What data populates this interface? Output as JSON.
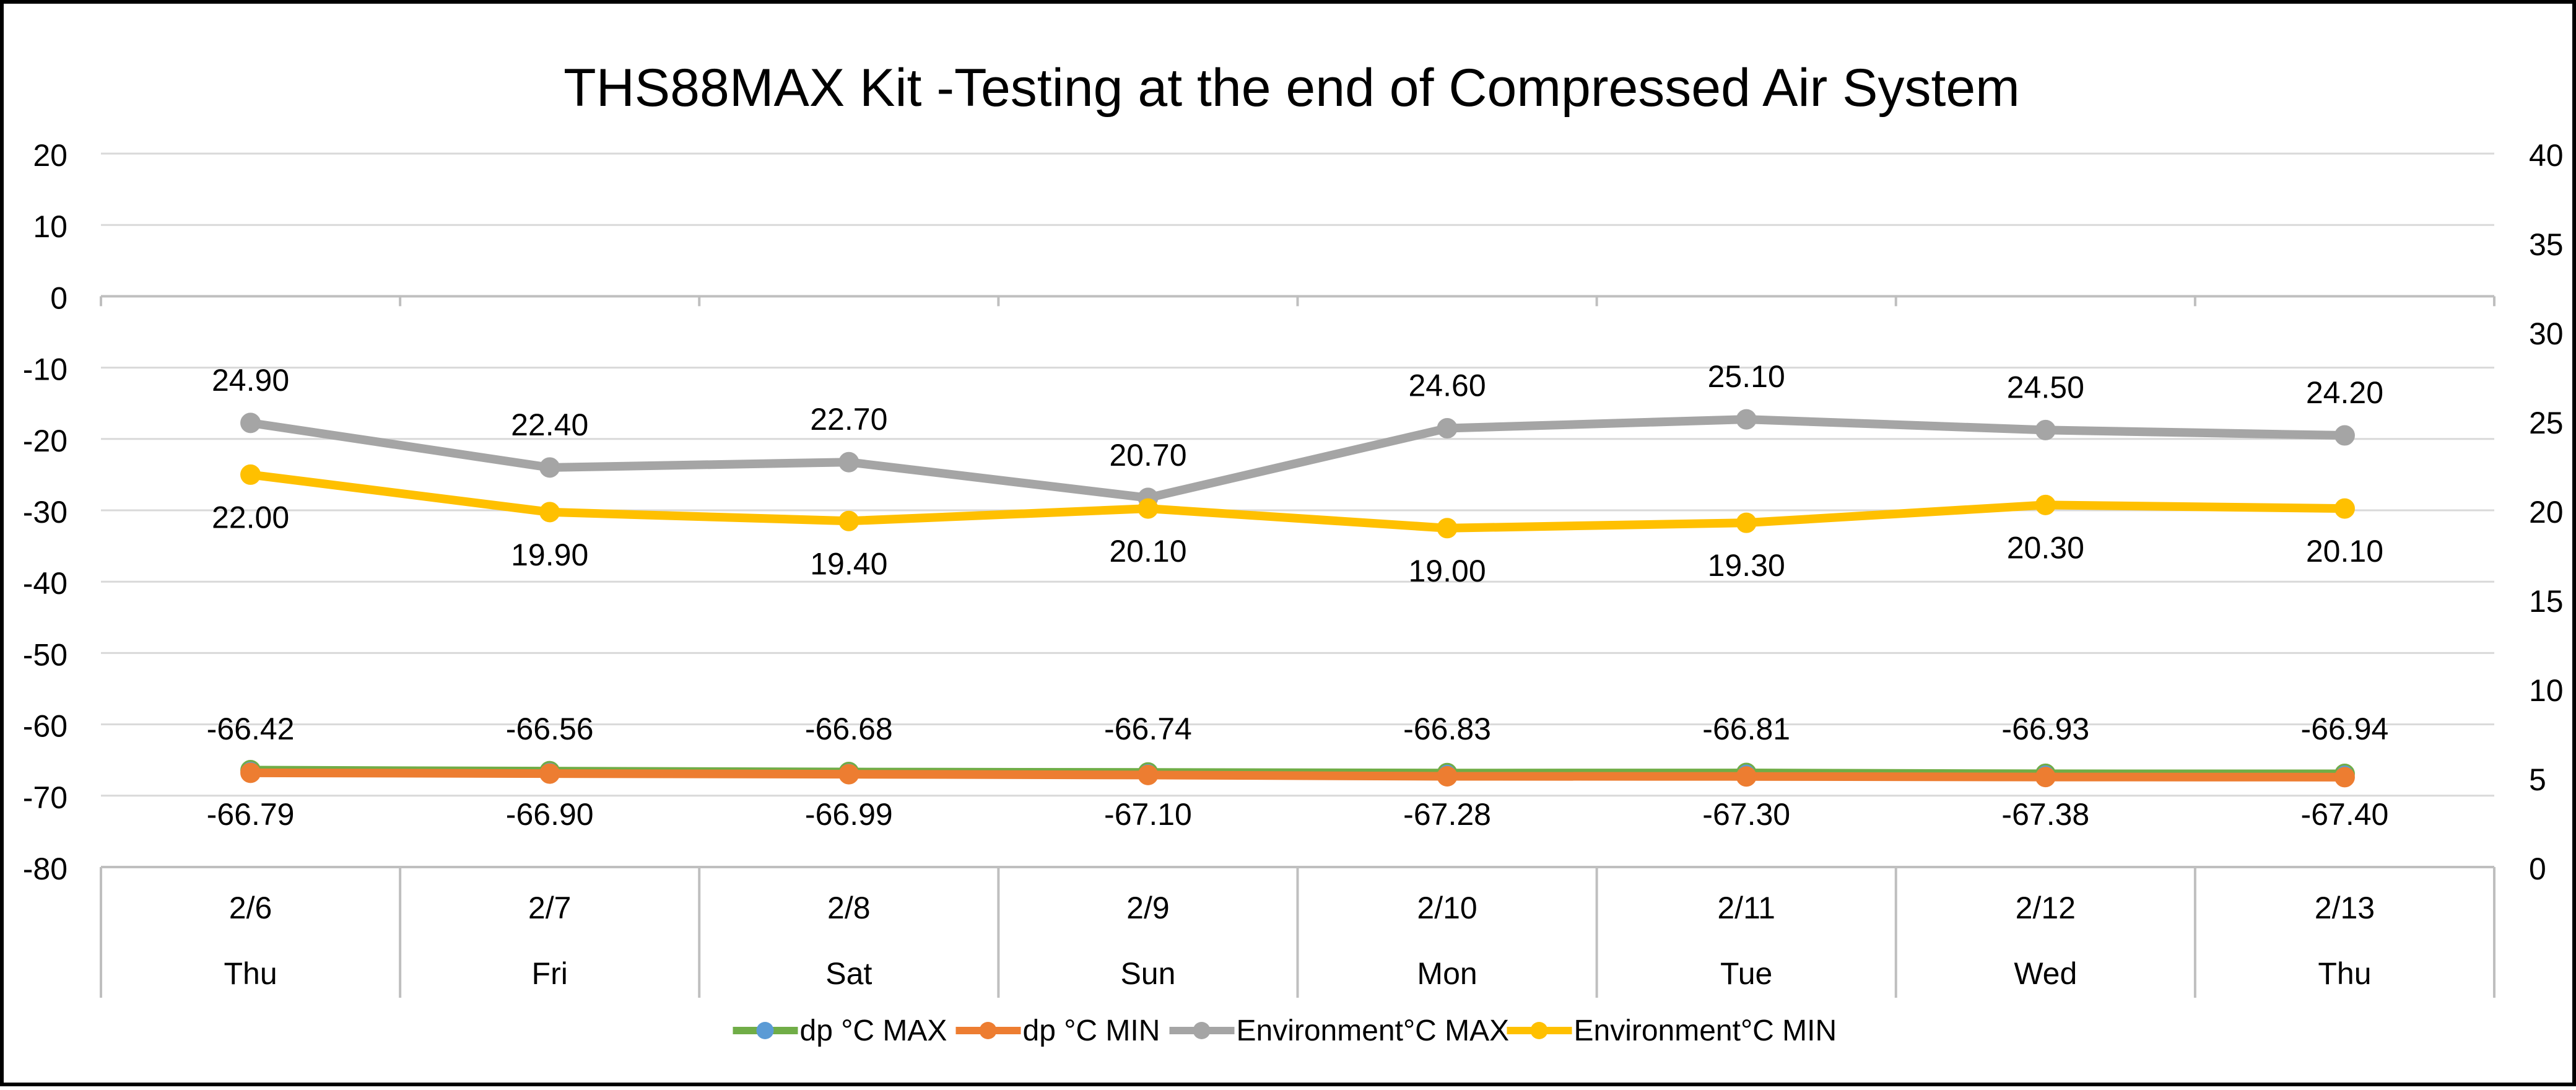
{
  "chart_data": {
    "type": "line",
    "title": "THS88MAX Kit -Testing at the end of Compressed Air System",
    "categories": [
      {
        "date": "2/6",
        "day": "Thu"
      },
      {
        "date": "2/7",
        "day": "Fri"
      },
      {
        "date": "2/8",
        "day": "Sat"
      },
      {
        "date": "2/9",
        "day": "Sun"
      },
      {
        "date": "2/10",
        "day": "Mon"
      },
      {
        "date": "2/11",
        "day": "Tue"
      },
      {
        "date": "2/12",
        "day": "Wed"
      },
      {
        "date": "2/13",
        "day": "Thu"
      }
    ],
    "y_left": {
      "min": -80,
      "max": 20,
      "step": 10,
      "ticks": [
        "20",
        "10",
        "0",
        "-10",
        "-20",
        "-30",
        "-40",
        "-50",
        "-60",
        "-70",
        "-80"
      ]
    },
    "y_right": {
      "min": 0,
      "max": 40,
      "step": 5,
      "ticks": [
        "40",
        "35",
        "30",
        "25",
        "20",
        "15",
        "10",
        "5",
        "0"
      ]
    },
    "grid": true,
    "legend_position": "bottom",
    "series": [
      {
        "name": "dp °C MAX",
        "axis": "left",
        "color": "#70AD47",
        "values": [
          -66.42,
          -66.56,
          -66.68,
          -66.74,
          -66.83,
          -66.81,
          -66.93,
          -66.94
        ],
        "labels": [
          "-66.42",
          "-66.56",
          "-66.68",
          "-66.74",
          "-66.83",
          "-66.81",
          "-66.93",
          "-66.94"
        ],
        "label_position": "above"
      },
      {
        "name": "dp °C MIN",
        "axis": "left",
        "color": "#ED7D31",
        "values": [
          -66.79,
          -66.9,
          -66.99,
          -67.1,
          -67.28,
          -67.3,
          -67.38,
          -67.4
        ],
        "labels": [
          "-66.79",
          "-66.90",
          "-66.99",
          "-67.10",
          "-67.28",
          "-67.30",
          "-67.38",
          "-67.40"
        ],
        "label_position": "below"
      },
      {
        "name": "Environment°C MAX",
        "axis": "right",
        "color": "#A5A5A5",
        "values": [
          24.9,
          22.4,
          22.7,
          20.7,
          24.6,
          25.1,
          24.5,
          24.2
        ],
        "labels": [
          "24.90",
          "22.40",
          "22.70",
          "20.70",
          "24.60",
          "25.10",
          "24.50",
          "24.20"
        ],
        "label_position": "above"
      },
      {
        "name": "Environment°C MIN",
        "axis": "right",
        "color": "#FFC000",
        "values": [
          22.0,
          19.9,
          19.4,
          20.1,
          19.0,
          19.3,
          20.3,
          20.1
        ],
        "labels": [
          "22.00",
          "19.90",
          "19.40",
          "20.10",
          "19.00",
          "19.30",
          "20.30",
          "20.10"
        ],
        "label_position": "below"
      }
    ],
    "legend": [
      {
        "label": "dp °C MAX",
        "line_color": "#70AD47",
        "marker_color": "#5B9BD5"
      },
      {
        "label": "dp °C MIN",
        "line_color": "#ED7D31",
        "marker_color": "#ED7D31"
      },
      {
        "label": "Environment°C MAX",
        "line_color": "#A5A5A5",
        "marker_color": "#A5A5A5"
      },
      {
        "label": "Environment°C MIN",
        "line_color": "#FFC000",
        "marker_color": "#FFC000"
      }
    ],
    "colors": {
      "grid": "#D9D9D9",
      "axis": "#BFBFBF",
      "text": "#000000",
      "frame": "#000000"
    }
  }
}
